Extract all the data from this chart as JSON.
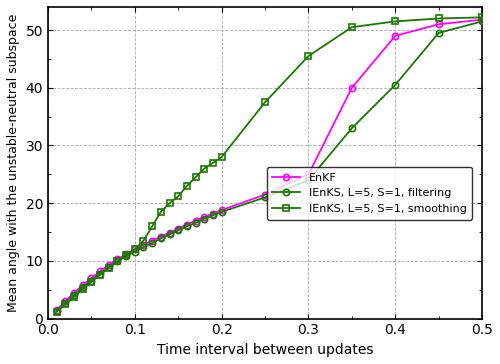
{
  "enkf_x": [
    0.01,
    0.02,
    0.03,
    0.04,
    0.05,
    0.06,
    0.07,
    0.08,
    0.09,
    0.1,
    0.11,
    0.12,
    0.13,
    0.14,
    0.15,
    0.16,
    0.17,
    0.18,
    0.19,
    0.2,
    0.25,
    0.3,
    0.35,
    0.4,
    0.45,
    0.5
  ],
  "enkf_y": [
    1.5,
    3.0,
    4.5,
    5.8,
    7.0,
    8.2,
    9.3,
    10.3,
    11.2,
    12.0,
    12.8,
    13.5,
    14.2,
    14.9,
    15.6,
    16.3,
    17.0,
    17.6,
    18.2,
    18.8,
    21.5,
    25.0,
    40.0,
    49.0,
    51.0,
    51.8
  ],
  "ienks_filter_x": [
    0.01,
    0.02,
    0.03,
    0.04,
    0.05,
    0.06,
    0.07,
    0.08,
    0.09,
    0.1,
    0.11,
    0.12,
    0.13,
    0.14,
    0.15,
    0.16,
    0.17,
    0.18,
    0.19,
    0.2,
    0.25,
    0.3,
    0.35,
    0.4,
    0.45,
    0.5
  ],
  "ienks_filter_y": [
    1.3,
    2.7,
    4.1,
    5.4,
    6.6,
    7.8,
    8.9,
    9.9,
    10.8,
    11.6,
    12.4,
    13.1,
    13.9,
    14.6,
    15.3,
    16.0,
    16.6,
    17.3,
    17.9,
    18.5,
    21.0,
    24.0,
    33.0,
    40.5,
    49.5,
    51.5
  ],
  "ienks_smooth_x": [
    0.01,
    0.02,
    0.03,
    0.04,
    0.05,
    0.06,
    0.07,
    0.08,
    0.09,
    0.1,
    0.11,
    0.12,
    0.13,
    0.14,
    0.15,
    0.16,
    0.17,
    0.18,
    0.19,
    0.2,
    0.25,
    0.3,
    0.35,
    0.4,
    0.45,
    0.5
  ],
  "ienks_smooth_y": [
    1.2,
    2.5,
    3.8,
    5.1,
    6.4,
    7.6,
    8.8,
    9.9,
    11.0,
    12.0,
    13.5,
    16.0,
    18.5,
    20.0,
    21.2,
    23.0,
    24.5,
    26.0,
    27.0,
    28.0,
    37.5,
    45.5,
    50.5,
    51.5,
    52.0,
    52.2
  ],
  "enkf_color": "#ff00ff",
  "ienks_filter_color": "#1a7a00",
  "ienks_smooth_color": "#1a7a00",
  "xlabel": "Time interval between updates",
  "ylabel": "Mean angle with the unstable-neutral subspace",
  "xlim": [
    0,
    0.5
  ],
  "ylim": [
    0,
    54
  ],
  "yticks": [
    0,
    10,
    20,
    30,
    40,
    50
  ],
  "xticks": [
    0,
    0.1,
    0.2,
    0.3,
    0.4,
    0.5
  ],
  "legend_enkf": "EnKF",
  "legend_filter": "IEnKS, L=5, S=1, filtering",
  "legend_smooth": "IEnKS, L=5, S=1, smoothing"
}
